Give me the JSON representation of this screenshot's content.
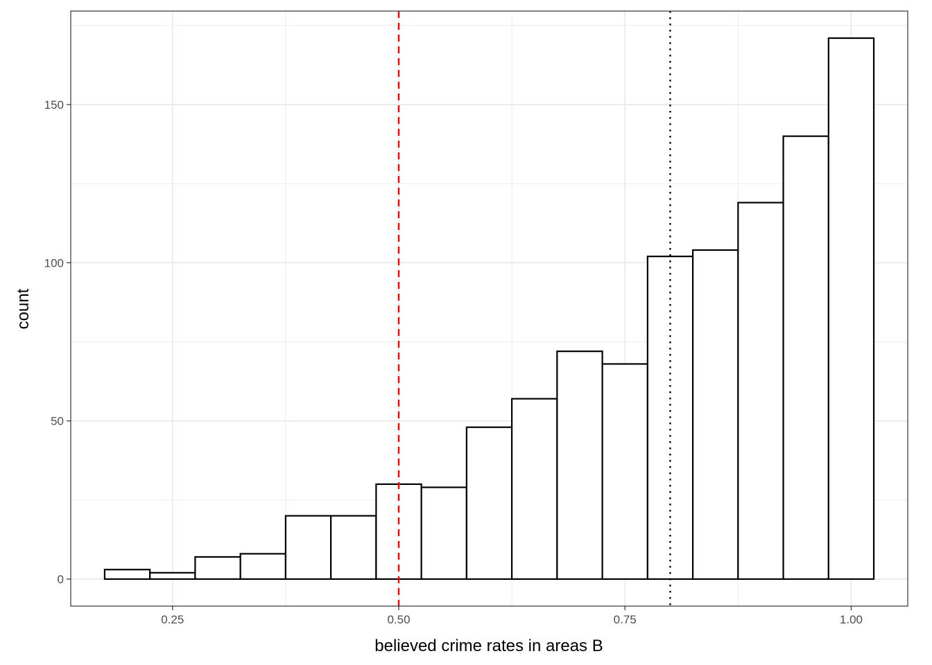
{
  "chart_data": {
    "type": "bar",
    "subtype": "histogram",
    "title": "",
    "xlabel": "believed crime rates in areas B",
    "ylabel": "count",
    "bin_width": 0.05,
    "bins": [
      {
        "center": 0.2,
        "count": 3
      },
      {
        "center": 0.25,
        "count": 2
      },
      {
        "center": 0.3,
        "count": 7
      },
      {
        "center": 0.35,
        "count": 8
      },
      {
        "center": 0.4,
        "count": 20
      },
      {
        "center": 0.45,
        "count": 20
      },
      {
        "center": 0.5,
        "count": 30
      },
      {
        "center": 0.55,
        "count": 29
      },
      {
        "center": 0.6,
        "count": 48
      },
      {
        "center": 0.65,
        "count": 57
      },
      {
        "center": 0.7,
        "count": 72
      },
      {
        "center": 0.75,
        "count": 68
      },
      {
        "center": 0.8,
        "count": 102
      },
      {
        "center": 0.85,
        "count": 104
      },
      {
        "center": 0.9,
        "count": 119
      },
      {
        "center": 0.95,
        "count": 140
      },
      {
        "center": 1.0,
        "count": 171
      }
    ],
    "xlim": [
      0.1375,
      1.0625
    ],
    "ylim": [
      -8.55,
      179.55
    ],
    "x_ticks": [
      0.25,
      0.5,
      0.75,
      1.0
    ],
    "x_tick_labels": [
      "0.25",
      "0.50",
      "0.75",
      "1.00"
    ],
    "y_ticks": [
      0,
      50,
      100,
      150
    ],
    "y_tick_labels": [
      "0",
      "50",
      "100",
      "150"
    ],
    "reference_lines": [
      {
        "x": 0.5,
        "style": "dashed",
        "color": "#ff0000"
      },
      {
        "x": 0.8,
        "style": "dotted",
        "color": "#000000"
      }
    ],
    "grid": true,
    "theme": "bw"
  }
}
